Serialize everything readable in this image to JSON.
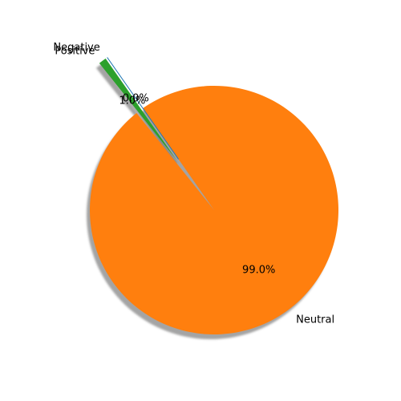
{
  "chart_data": {
    "type": "pie",
    "shadow": true,
    "slices": [
      {
        "label": "Positive",
        "value": 1.0,
        "pct_label": "1.0%",
        "color": "#2ca02c",
        "exploded": true
      },
      {
        "label": "Neutral",
        "value": 99.0,
        "pct_label": "99.0%",
        "color": "#ff7f0e",
        "exploded": false
      },
      {
        "label": "Negative",
        "value": 0.0,
        "pct_label": "0.0%",
        "color": "#1f77b4",
        "exploded": true
      }
    ],
    "title": "",
    "legend": "none"
  }
}
